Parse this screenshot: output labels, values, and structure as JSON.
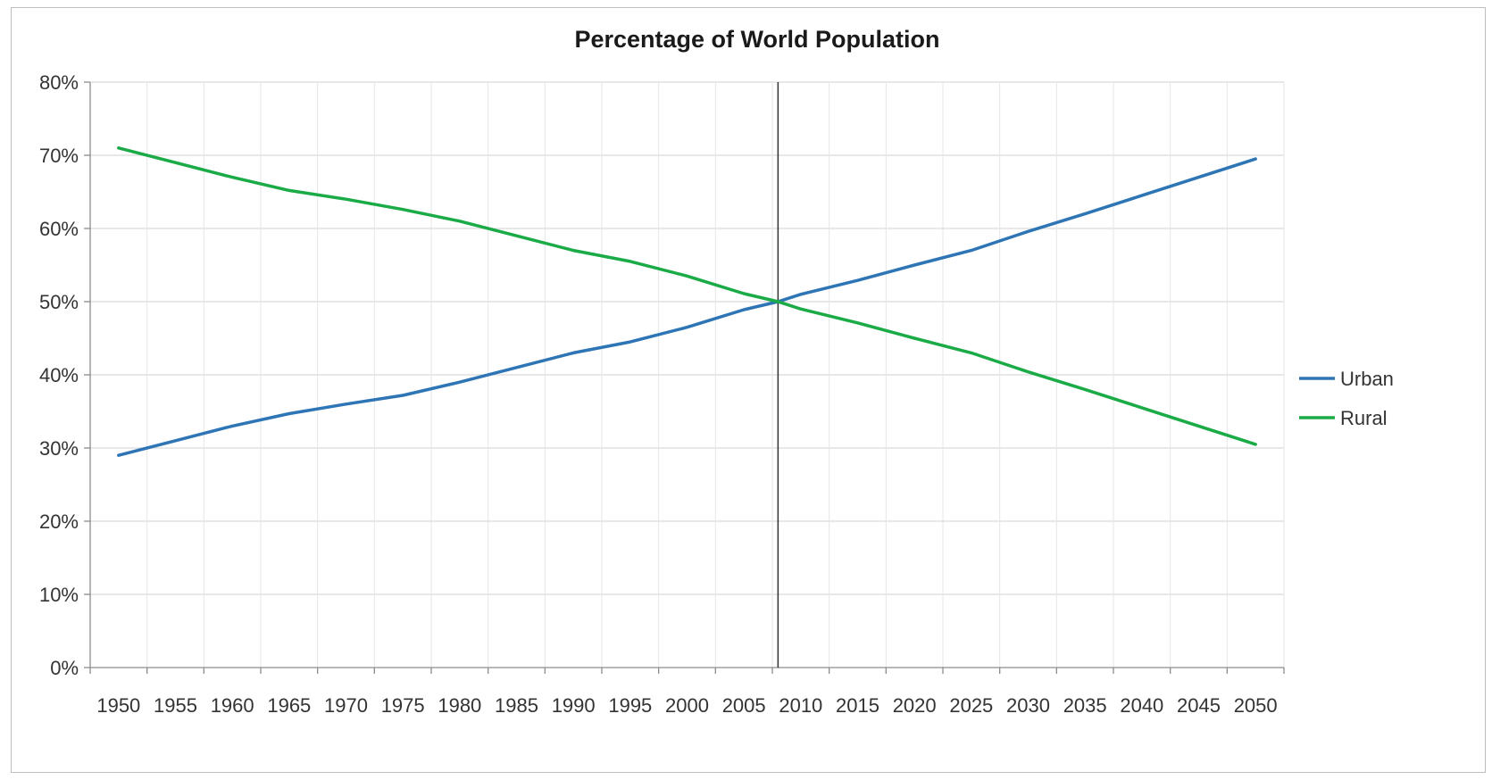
{
  "chart_data": {
    "type": "line",
    "title": "Percentage of World Population",
    "xlabel": "",
    "ylabel": "",
    "x": [
      1950,
      1955,
      1960,
      1965,
      1970,
      1975,
      1980,
      1985,
      1990,
      1995,
      2000,
      2005,
      2010,
      2015,
      2020,
      2025,
      2030,
      2035,
      2040,
      2045,
      2050
    ],
    "xtick_labels": [
      "1950",
      "1955",
      "1960",
      "1965",
      "1970",
      "1975",
      "1980",
      "1985",
      "1990",
      "1995",
      "2000",
      "2005",
      "2010",
      "2015",
      "2020",
      "2025",
      "2030",
      "2035",
      "2040",
      "2045",
      "2050"
    ],
    "ylim": [
      0,
      80
    ],
    "ytick_values": [
      0,
      10,
      20,
      30,
      40,
      50,
      60,
      70,
      80
    ],
    "ytick_labels": [
      "0%",
      "10%",
      "20%",
      "30%",
      "40%",
      "50%",
      "60%",
      "70%",
      "80%"
    ],
    "grid": true,
    "legend_position": "right",
    "reference_line_x": 2008,
    "series": [
      {
        "name": "Urban",
        "color": "#2e75b6",
        "x": [
          1950,
          1955,
          1960,
          1965,
          1970,
          1975,
          1980,
          1985,
          1990,
          1995,
          2000,
          2005,
          2008,
          2010,
          2015,
          2020,
          2025,
          2030,
          2035,
          2040,
          2045,
          2050
        ],
        "values": [
          29.0,
          31.0,
          33.0,
          34.7,
          36.0,
          37.2,
          39.0,
          41.0,
          43.0,
          44.5,
          46.5,
          48.9,
          50.0,
          51.0,
          52.9,
          55.0,
          57.0,
          59.6,
          62.0,
          64.5,
          67.0,
          69.5
        ]
      },
      {
        "name": "Rural",
        "color": "#1aab47",
        "x": [
          1950,
          1955,
          1960,
          1965,
          1970,
          1975,
          1980,
          1985,
          1990,
          1995,
          2000,
          2005,
          2008,
          2010,
          2015,
          2020,
          2025,
          2030,
          2035,
          2040,
          2045,
          2050
        ],
        "values": [
          71.0,
          69.0,
          67.0,
          65.2,
          64.0,
          62.6,
          61.0,
          59.0,
          57.0,
          55.5,
          53.5,
          51.1,
          50.0,
          49.0,
          47.1,
          45.0,
          43.0,
          40.4,
          38.0,
          35.5,
          33.0,
          30.5
        ]
      }
    ]
  }
}
